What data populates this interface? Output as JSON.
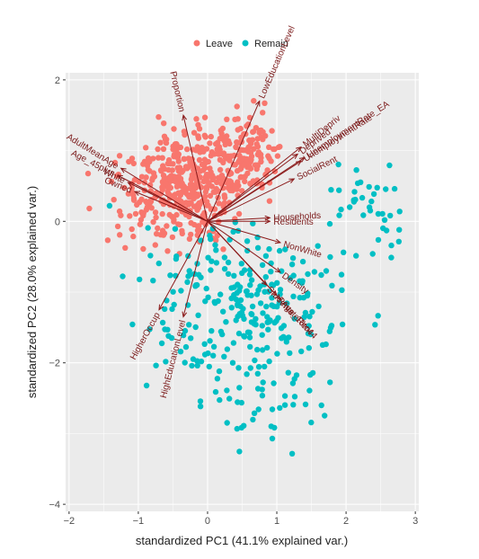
{
  "chart_data": {
    "type": "scatter",
    "title": "",
    "xlabel": "standardized PC1 (41.1% explained var.)",
    "ylabel": "standardized PC2 (28.0% explained var.)",
    "xlim": [
      -2.05,
      3.05
    ],
    "ylim": [
      -4.1,
      2.1
    ],
    "xticks": [
      -2,
      -1,
      0,
      1,
      2,
      3
    ],
    "yticks": [
      -4,
      -2,
      0,
      2
    ],
    "grid": true,
    "legend_position": "top",
    "colors": {
      "Leave": "#F8766D",
      "Remain": "#00BFC4",
      "arrow": "#8B1A1A",
      "panel": "#EBEBEB",
      "gridline": "#FFFFFF"
    },
    "series": [
      {
        "name": "Leave",
        "marker": "point"
      },
      {
        "name": "Remain",
        "marker": "point"
      }
    ],
    "loadings": [
      {
        "name": "Proportion",
        "x": -0.35,
        "y": 1.5
      },
      {
        "name": "LowEducationLevel",
        "x": 0.75,
        "y": 1.7
      },
      {
        "name": "MultiDepriv",
        "x": 1.35,
        "y": 1.05
      },
      {
        "name": "Deprived",
        "x": 1.3,
        "y": 0.95
      },
      {
        "name": "UnemploymentRate_EA",
        "x": 1.4,
        "y": 0.9
      },
      {
        "name": "UnemploymentRate",
        "x": 1.35,
        "y": 0.85
      },
      {
        "name": "SocialRent",
        "x": 1.25,
        "y": 0.6
      },
      {
        "name": "Households",
        "x": 0.9,
        "y": 0.05
      },
      {
        "name": "Residents",
        "x": 0.9,
        "y": 0.0
      },
      {
        "name": "NonWhite",
        "x": 1.05,
        "y": -0.3
      },
      {
        "name": "Density",
        "x": 1.05,
        "y": -0.72
      },
      {
        "name": "Age_18to44",
        "x": 1.05,
        "y": -1.1
      },
      {
        "name": "Students",
        "x": 0.85,
        "y": -0.9
      },
      {
        "name": "PrivateRent",
        "x": 1.0,
        "y": -1.05
      },
      {
        "name": "AdultMeanAge",
        "x": -1.25,
        "y": 0.75
      },
      {
        "name": "Age_45plus",
        "x": -1.3,
        "y": 0.65
      },
      {
        "name": "White",
        "x": -1.15,
        "y": 0.55
      },
      {
        "name": "Owned",
        "x": -1.05,
        "y": 0.42
      },
      {
        "name": "HigherOccup",
        "x": -0.7,
        "y": -1.25
      },
      {
        "name": "HighEducationLevel",
        "x": -0.35,
        "y": -1.35
      }
    ]
  }
}
